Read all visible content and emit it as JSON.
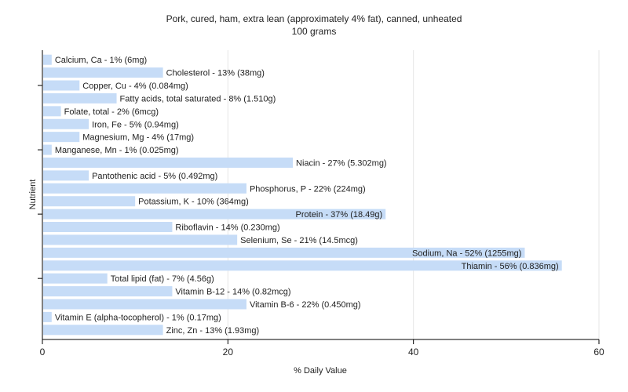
{
  "chart_data": {
    "type": "bar",
    "orientation": "horizontal",
    "title": "Pork, cured, ham, extra lean (approximately 4% fat), canned, unheated",
    "subtitle": "100 grams",
    "xlabel": "% Daily Value",
    "ylabel": "Nutrient",
    "xlim": [
      0,
      60
    ],
    "xticks": [
      0,
      20,
      40,
      60
    ],
    "grid": true,
    "colors": {
      "bar": "#c6dcf7",
      "grid": "#e6e6e6",
      "axis": "#000000",
      "text": "#222222"
    },
    "bars": [
      {
        "label": "Calcium, Ca - 1% (6mg)",
        "value": 1
      },
      {
        "label": "Cholesterol - 13% (38mg)",
        "value": 13
      },
      {
        "label": "Copper, Cu - 4% (0.084mg)",
        "value": 4
      },
      {
        "label": "Fatty acids, total saturated - 8% (1.510g)",
        "value": 8
      },
      {
        "label": "Folate, total - 2% (6mcg)",
        "value": 2
      },
      {
        "label": "Iron, Fe - 5% (0.94mg)",
        "value": 5
      },
      {
        "label": "Magnesium, Mg - 4% (17mg)",
        "value": 4
      },
      {
        "label": "Manganese, Mn - 1% (0.025mg)",
        "value": 1
      },
      {
        "label": "Niacin - 27% (5.302mg)",
        "value": 27
      },
      {
        "label": "Pantothenic acid - 5% (0.492mg)",
        "value": 5
      },
      {
        "label": "Phosphorus, P - 22% (224mg)",
        "value": 22
      },
      {
        "label": "Potassium, K - 10% (364mg)",
        "value": 10
      },
      {
        "label": "Protein - 37% (18.49g)",
        "value": 37
      },
      {
        "label": "Riboflavin - 14% (0.230mg)",
        "value": 14
      },
      {
        "label": "Selenium, Se - 21% (14.5mcg)",
        "value": 21
      },
      {
        "label": "Sodium, Na - 52% (1255mg)",
        "value": 52
      },
      {
        "label": "Thiamin - 56% (0.836mg)",
        "value": 56
      },
      {
        "label": "Total lipid (fat) - 7% (4.56g)",
        "value": 7
      },
      {
        "label": "Vitamin B-12 - 14% (0.82mcg)",
        "value": 14
      },
      {
        "label": "Vitamin B-6 - 22% (0.450mg)",
        "value": 22
      },
      {
        "label": "Vitamin E (alpha-tocopherol) - 1% (0.17mg)",
        "value": 1
      },
      {
        "label": "Zinc, Zn - 13% (1.93mg)",
        "value": 13
      }
    ]
  }
}
